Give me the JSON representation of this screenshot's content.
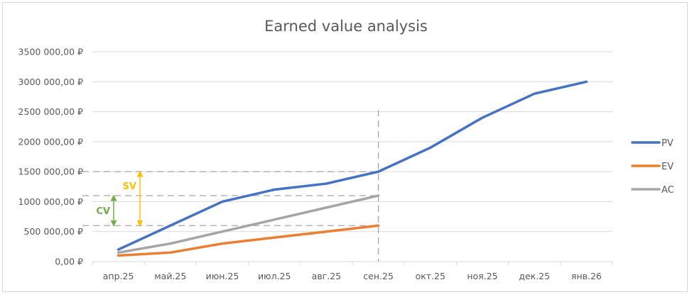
{
  "chart_data": {
    "type": "line",
    "title": "Earned value analysis",
    "xlabel": "",
    "ylabel": "",
    "categories": [
      "апр.25",
      "май.25",
      "июн.25",
      "июл.25",
      "авг.25",
      "сен.25",
      "окт.25",
      "ноя.25",
      "дек.25",
      "янв.26"
    ],
    "series": [
      {
        "name": "PV",
        "color": "#4472C4",
        "values": [
          200000,
          600000,
          1000000,
          1200000,
          1300000,
          1500000,
          1900000,
          2400000,
          2800000,
          3000000
        ]
      },
      {
        "name": "EV",
        "color": "#ED7D31",
        "values": [
          100000,
          150000,
          300000,
          400000,
          500000,
          600000,
          null,
          null,
          null,
          null
        ]
      },
      {
        "name": "AC",
        "color": "#A5A5A5",
        "values": [
          150000,
          300000,
          500000,
          700000,
          900000,
          1100000,
          null,
          null,
          null,
          null
        ]
      }
    ],
    "ylim": [
      0,
      3500000
    ],
    "yticks": [
      "0,00 ₽",
      "500 000,00 ₽",
      "1000 000,00 ₽",
      "1500 000,00 ₽",
      "2000 000,00 ₽",
      "2500 000,00 ₽",
      "3000 000,00 ₽",
      "3500 000,00 ₽"
    ],
    "grid": true,
    "legend_position": "right",
    "annotations": [
      {
        "label": "SV",
        "color": "#FFC000",
        "from": 600000,
        "to": 1500000
      },
      {
        "label": "CV",
        "color": "#70AD47",
        "from": 600000,
        "to": 1100000
      },
      {
        "type": "vertical-dashed-line",
        "at": "сен.25"
      },
      {
        "type": "horizontal-dashed-line",
        "at": 1500000
      },
      {
        "type": "horizontal-dashed-line",
        "at": 1100000
      },
      {
        "type": "horizontal-dashed-line",
        "at": 600000
      }
    ]
  }
}
